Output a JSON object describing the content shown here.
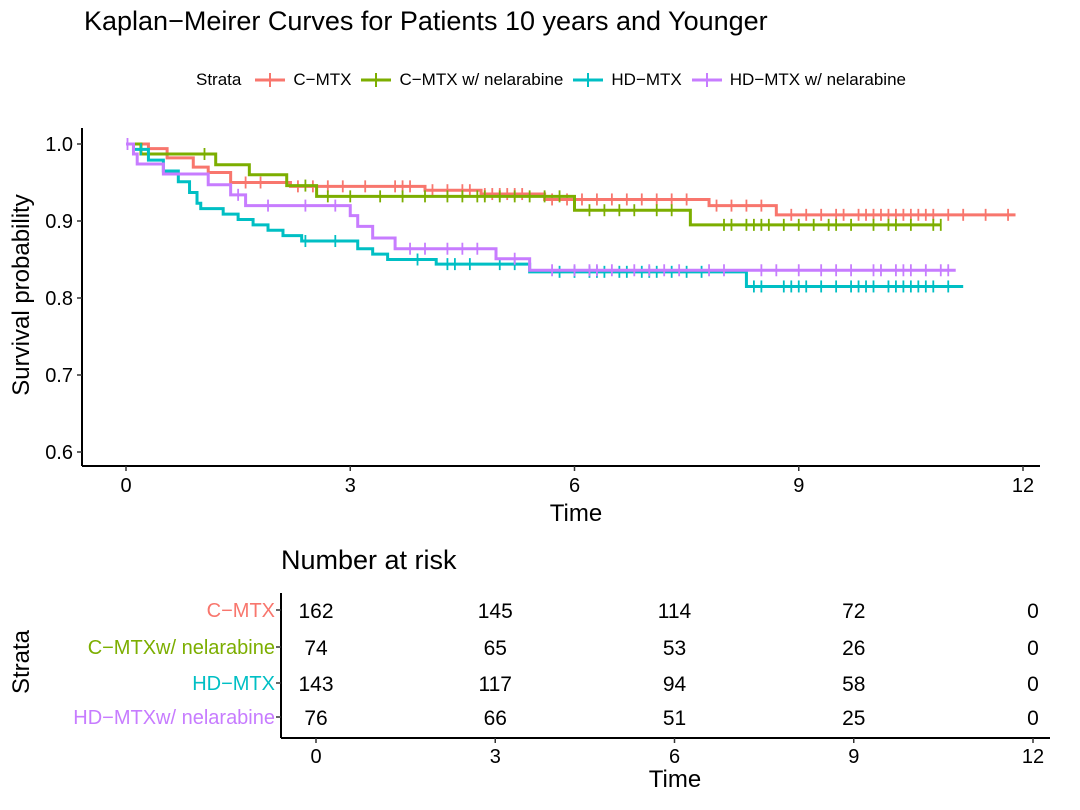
{
  "chart_data": {
    "type": "line",
    "subtype": "kaplan-meier step",
    "title": "Kaplan−Meirer Curves for Patients 10 years and Younger",
    "xlabel": "Time",
    "ylabel": "Survival probability",
    "xlim": [
      0,
      12
    ],
    "ylim": [
      0.6,
      1.0
    ],
    "xticks": [
      0,
      3,
      6,
      9,
      12
    ],
    "yticks": [
      0.6,
      0.7,
      0.8,
      0.9,
      1.0
    ],
    "ytick_labels": [
      "0.6",
      "0.7",
      "0.8",
      "0.9",
      "1.0"
    ],
    "legend_title": "Strata",
    "legend_position": "top",
    "series": [
      {
        "name": "C−MTX",
        "color": "#F8766D",
        "steps": [
          [
            0,
            1.0
          ],
          [
            0.3,
            0.994
          ],
          [
            0.55,
            0.982
          ],
          [
            0.9,
            0.97
          ],
          [
            1.1,
            0.963
          ],
          [
            1.4,
            0.95
          ],
          [
            2.1,
            0.95
          ],
          [
            2.2,
            0.945
          ],
          [
            3.5,
            0.945
          ],
          [
            4.0,
            0.94
          ],
          [
            4.7,
            0.94
          ],
          [
            4.75,
            0.935
          ],
          [
            5.5,
            0.935
          ],
          [
            5.6,
            0.928
          ],
          [
            7.6,
            0.928
          ],
          [
            7.8,
            0.92
          ],
          [
            8.65,
            0.92
          ],
          [
            8.7,
            0.908
          ],
          [
            11.9,
            0.908
          ]
        ],
        "censor_times": [
          1.6,
          1.8,
          2.3,
          2.5,
          2.7,
          2.9,
          3.2,
          3.6,
          3.7,
          3.8,
          4.1,
          4.3,
          4.5,
          4.6,
          4.8,
          4.9,
          5.0,
          5.1,
          5.2,
          5.3,
          5.7,
          5.9,
          6.1,
          6.3,
          6.5,
          6.7,
          6.9,
          7.1,
          7.3,
          7.5,
          7.9,
          8.1,
          8.3,
          8.5,
          8.9,
          9.1,
          9.3,
          9.5,
          9.6,
          9.8,
          9.9,
          10.0,
          10.1,
          10.2,
          10.3,
          10.4,
          10.5,
          10.6,
          10.7,
          10.8,
          11.0,
          11.2,
          11.5,
          11.8
        ]
      },
      {
        "name": "C−MTX w/ nelarabine",
        "color": "#7CAE00",
        "steps": [
          [
            0,
            1.0
          ],
          [
            0.2,
            0.987
          ],
          [
            1.1,
            0.987
          ],
          [
            1.2,
            0.973
          ],
          [
            1.6,
            0.973
          ],
          [
            1.65,
            0.96
          ],
          [
            2.1,
            0.96
          ],
          [
            2.15,
            0.946
          ],
          [
            2.5,
            0.946
          ],
          [
            2.55,
            0.932
          ],
          [
            5.95,
            0.932
          ],
          [
            6.0,
            0.914
          ],
          [
            7.5,
            0.914
          ],
          [
            7.55,
            0.895
          ],
          [
            10.9,
            0.895
          ]
        ],
        "censor_times": [
          0.3,
          1.05,
          2.4,
          2.7,
          3.0,
          3.4,
          3.7,
          4.0,
          4.3,
          4.5,
          4.7,
          4.8,
          5.0,
          5.2,
          5.4,
          5.6,
          5.8,
          6.2,
          6.4,
          6.6,
          6.8,
          7.1,
          7.3,
          8.0,
          8.1,
          8.3,
          8.4,
          8.5,
          8.6,
          8.8,
          9.0,
          9.2,
          9.4,
          9.5,
          9.7,
          10.0,
          10.2,
          10.3,
          10.5,
          10.8,
          10.9
        ]
      },
      {
        "name": "HD−MTX",
        "color": "#00BFC4",
        "steps": [
          [
            0,
            1.0
          ],
          [
            0.1,
            0.993
          ],
          [
            0.3,
            0.979
          ],
          [
            0.5,
            0.965
          ],
          [
            0.7,
            0.951
          ],
          [
            0.85,
            0.937
          ],
          [
            0.95,
            0.923
          ],
          [
            1.0,
            0.916
          ],
          [
            1.3,
            0.909
          ],
          [
            1.5,
            0.902
          ],
          [
            1.7,
            0.895
          ],
          [
            1.9,
            0.888
          ],
          [
            2.1,
            0.881
          ],
          [
            2.35,
            0.874
          ],
          [
            3.1,
            0.864
          ],
          [
            3.3,
            0.857
          ],
          [
            3.5,
            0.85
          ],
          [
            4.0,
            0.85
          ],
          [
            4.15,
            0.844
          ],
          [
            5.3,
            0.844
          ],
          [
            5.4,
            0.834
          ],
          [
            8.2,
            0.834
          ],
          [
            8.3,
            0.815
          ],
          [
            11.2,
            0.815
          ]
        ],
        "censor_times": [
          0.2,
          2.4,
          2.8,
          3.9,
          4.3,
          4.4,
          4.6,
          5.0,
          5.2,
          5.8,
          6.0,
          6.2,
          6.3,
          6.4,
          6.6,
          6.7,
          6.9,
          7.0,
          7.1,
          7.3,
          7.5,
          7.7,
          8.4,
          8.5,
          8.8,
          8.9,
          9.0,
          9.1,
          9.3,
          9.5,
          9.7,
          9.8,
          9.9,
          10.0,
          10.2,
          10.3,
          10.4,
          10.5,
          10.6,
          10.7,
          10.8,
          11.0
        ]
      },
      {
        "name": "HD−MTX w/ nelarabine",
        "color": "#C77CFF",
        "steps": [
          [
            0,
            1.0
          ],
          [
            0.1,
            0.987
          ],
          [
            0.15,
            0.974
          ],
          [
            0.4,
            0.974
          ],
          [
            0.5,
            0.961
          ],
          [
            1.0,
            0.961
          ],
          [
            1.1,
            0.947
          ],
          [
            1.4,
            0.934
          ],
          [
            1.6,
            0.92
          ],
          [
            2.65,
            0.92
          ],
          [
            3.0,
            0.907
          ],
          [
            3.1,
            0.893
          ],
          [
            3.3,
            0.878
          ],
          [
            3.5,
            0.878
          ],
          [
            3.6,
            0.864
          ],
          [
            4.9,
            0.864
          ],
          [
            4.95,
            0.851
          ],
          [
            5.35,
            0.851
          ],
          [
            5.4,
            0.836
          ],
          [
            11.1,
            0.836
          ]
        ],
        "censor_times": [
          0.02,
          1.5,
          1.9,
          2.4,
          2.8,
          3.8,
          4.0,
          4.3,
          4.5,
          4.7,
          5.2,
          5.7,
          6.0,
          6.2,
          6.3,
          6.5,
          6.8,
          7.0,
          7.2,
          7.4,
          7.8,
          8.0,
          8.5,
          8.7,
          9.0,
          9.3,
          9.5,
          9.7,
          10.0,
          10.1,
          10.3,
          10.4,
          10.5,
          10.7,
          10.9,
          11.0
        ]
      }
    ]
  },
  "risk_table": {
    "title": "Number at risk",
    "ylabel": "Strata",
    "xlabel": "Time",
    "times": [
      0,
      3,
      6,
      9,
      12
    ],
    "tick_labels": [
      "0",
      "3",
      "6",
      "9",
      "12"
    ],
    "rows": [
      {
        "label": "C−MTX",
        "color": "#F8766D",
        "values": [
          "162",
          "145",
          "114",
          "72",
          "0"
        ]
      },
      {
        "label": "C−MTXw/ nelarabine",
        "color": "#7CAE00",
        "values": [
          "74",
          "65",
          "53",
          "26",
          "0"
        ]
      },
      {
        "label": "HD−MTX",
        "color": "#00BFC4",
        "values": [
          "143",
          "117",
          "94",
          "58",
          "0"
        ]
      },
      {
        "label": "HD−MTXw/ nelarabine",
        "color": "#C77CFF",
        "values": [
          "76",
          "66",
          "51",
          "25",
          "0"
        ]
      }
    ]
  }
}
